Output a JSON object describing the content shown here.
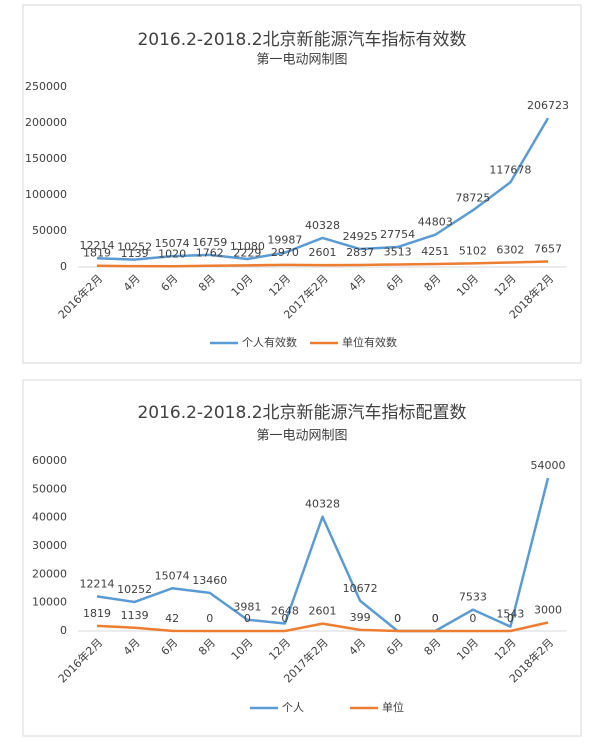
{
  "chart_data": [
    {
      "type": "line",
      "title": "2016.2-2018.2北京新能源汽车指标有效数",
      "subtitle": "第一电动网制图",
      "categories": [
        "2016年2月",
        "4月",
        "6月",
        "8月",
        "10月",
        "12月",
        "2017年2月",
        "4月",
        "6月",
        "8月",
        "10月",
        "12月",
        "2018年2月"
      ],
      "series": [
        {
          "name": "个人有效数",
          "color": "#5b9bd5",
          "values": [
            12214,
            10252,
            15074,
            16759,
            11080,
            19987,
            40328,
            24925,
            27754,
            44803,
            78725,
            117678,
            206723
          ]
        },
        {
          "name": "单位有效数",
          "color": "#ed7d31",
          "values": [
            1819,
            1139,
            1020,
            1762,
            2229,
            2970,
            2601,
            2837,
            3513,
            4251,
            5102,
            6302,
            7657
          ]
        }
      ],
      "ylim": [
        0,
        250000
      ],
      "yticks": [
        0,
        50000,
        100000,
        150000,
        200000,
        250000
      ],
      "grid": false,
      "legend": "bottom"
    },
    {
      "type": "line",
      "title": "2016.2-2018.2北京新能源汽车指标配置数",
      "subtitle": "第一电动网制图",
      "categories": [
        "2016年2月",
        "4月",
        "6月",
        "8月",
        "10月",
        "12月",
        "2017年2月",
        "4月",
        "6月",
        "8月",
        "10月",
        "12月",
        "2018年2月"
      ],
      "series": [
        {
          "name": "个人",
          "color": "#5b9bd5",
          "values": [
            12214,
            10252,
            15074,
            13460,
            3981,
            2648,
            40328,
            10672,
            0,
            0,
            7533,
            1543,
            54000
          ]
        },
        {
          "name": "单位",
          "color": "#ed7d31",
          "values": [
            1819,
            1139,
            42,
            0,
            0,
            0,
            2601,
            399,
            0,
            0,
            0,
            0,
            3000
          ]
        }
      ],
      "ylim": [
        0,
        60000
      ],
      "yticks": [
        0,
        10000,
        20000,
        30000,
        40000,
        50000,
        60000
      ],
      "grid": false,
      "legend": "bottom"
    }
  ]
}
